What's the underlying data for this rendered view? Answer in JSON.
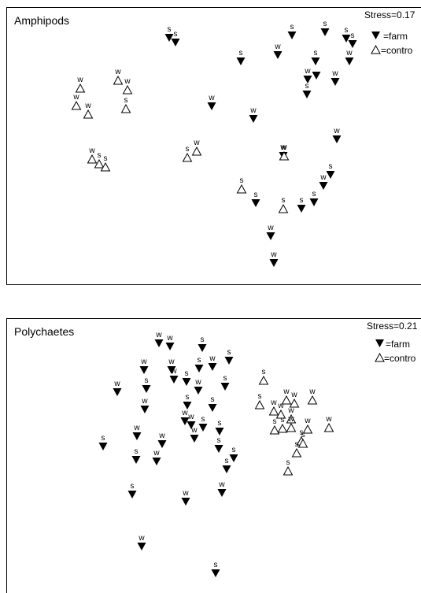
{
  "chart_data": [
    {
      "type": "scatter",
      "title": "Amphipods",
      "annotation": "Stress=0.17",
      "legend": {
        "position": "top-right",
        "farm_label": "=farm",
        "control_label": "=contro"
      },
      "series": [
        {
          "name": "farm",
          "marker": "filled-down-triangle",
          "points": [
            {
              "x": 215,
              "y": 48,
              "label": "s"
            },
            {
              "x": 223,
              "y": 54,
              "label": "s"
            },
            {
              "x": 306,
              "y": 78,
              "label": "s"
            },
            {
              "x": 371,
              "y": 45,
              "label": "s"
            },
            {
              "x": 413,
              "y": 41,
              "label": "s"
            },
            {
              "x": 440,
              "y": 49,
              "label": "s"
            },
            {
              "x": 448,
              "y": 56,
              "label": "s"
            },
            {
              "x": 353,
              "y": 70,
              "label": "w"
            },
            {
              "x": 401,
              "y": 78,
              "label": "s"
            },
            {
              "x": 444,
              "y": 78,
              "label": "w"
            },
            {
              "x": 391,
              "y": 101,
              "label": "w"
            },
            {
              "x": 402,
              "y": 96,
              "label": ""
            },
            {
              "x": 426,
              "y": 104,
              "label": "w"
            },
            {
              "x": 390,
              "y": 120,
              "label": "s"
            },
            {
              "x": 269,
              "y": 135,
              "label": "w"
            },
            {
              "x": 322,
              "y": 151,
              "label": "w"
            },
            {
              "x": 428,
              "y": 177,
              "label": "w"
            },
            {
              "x": 360,
              "y": 198,
              "label": "w"
            },
            {
              "x": 420,
              "y": 222,
              "label": "s"
            },
            {
              "x": 411,
              "y": 236,
              "label": "w"
            },
            {
              "x": 325,
              "y": 258,
              "label": "s"
            },
            {
              "x": 383,
              "y": 265,
              "label": "s"
            },
            {
              "x": 399,
              "y": 257,
              "label": "s"
            },
            {
              "x": 344,
              "y": 300,
              "label": "w"
            },
            {
              "x": 348,
              "y": 334,
              "label": "w"
            }
          ]
        },
        {
          "name": "control",
          "marker": "open-up-triangle",
          "points": [
            {
              "x": 102,
              "y": 112,
              "label": "w"
            },
            {
              "x": 97,
              "y": 134,
              "label": "w"
            },
            {
              "x": 112,
              "y": 145,
              "label": "w"
            },
            {
              "x": 150,
              "y": 102,
              "label": "w"
            },
            {
              "x": 162,
              "y": 114,
              "label": "w"
            },
            {
              "x": 160,
              "y": 138,
              "label": "s"
            },
            {
              "x": 117,
              "y": 202,
              "label": "w"
            },
            {
              "x": 126,
              "y": 208,
              "label": "s"
            },
            {
              "x": 134,
              "y": 212,
              "label": "s"
            },
            {
              "x": 238,
              "y": 200,
              "label": "s"
            },
            {
              "x": 250,
              "y": 192,
              "label": "w"
            },
            {
              "x": 361,
              "y": 198,
              "label": "w"
            },
            {
              "x": 307,
              "y": 240,
              "label": "s"
            },
            {
              "x": 360,
              "y": 265,
              "label": "s"
            }
          ]
        }
      ]
    },
    {
      "type": "scatter",
      "title": "Polychaetes",
      "annotation": "Stress=0.21",
      "legend": {
        "position": "top-right",
        "farm_label": "=farm",
        "control_label": "=contro"
      },
      "series": [
        {
          "name": "farm",
          "marker": "filled-down-triangle",
          "points": [
            {
              "x": 202,
              "y": 436,
              "label": "w"
            },
            {
              "x": 216,
              "y": 440,
              "label": "w"
            },
            {
              "x": 257,
              "y": 442,
              "label": "s"
            },
            {
              "x": 291,
              "y": 458,
              "label": "s"
            },
            {
              "x": 183,
              "y": 470,
              "label": "w"
            },
            {
              "x": 218,
              "y": 470,
              "label": "w"
            },
            {
              "x": 253,
              "y": 468,
              "label": "s"
            },
            {
              "x": 270,
              "y": 466,
              "label": "w"
            },
            {
              "x": 186,
              "y": 494,
              "label": "s"
            },
            {
              "x": 221,
              "y": 482,
              "label": "w"
            },
            {
              "x": 237,
              "y": 485,
              "label": "s"
            },
            {
              "x": 252,
              "y": 496,
              "label": "w"
            },
            {
              "x": 286,
              "y": 491,
              "label": "s"
            },
            {
              "x": 149,
              "y": 498,
              "label": "w"
            },
            {
              "x": 184,
              "y": 520,
              "label": "w"
            },
            {
              "x": 238,
              "y": 515,
              "label": "s"
            },
            {
              "x": 270,
              "y": 518,
              "label": "s"
            },
            {
              "x": 235,
              "y": 535,
              "label": "w"
            },
            {
              "x": 243,
              "y": 540,
              "label": "w"
            },
            {
              "x": 258,
              "y": 543,
              "label": "s"
            },
            {
              "x": 279,
              "y": 548,
              "label": "s"
            },
            {
              "x": 174,
              "y": 554,
              "label": "w"
            },
            {
              "x": 247,
              "y": 557,
              "label": "w"
            },
            {
              "x": 131,
              "y": 567,
              "label": "s"
            },
            {
              "x": 206,
              "y": 564,
              "label": "w"
            },
            {
              "x": 278,
              "y": 570,
              "label": "s"
            },
            {
              "x": 173,
              "y": 584,
              "label": "s"
            },
            {
              "x": 199,
              "y": 586,
              "label": "w"
            },
            {
              "x": 297,
              "y": 582,
              "label": "s"
            },
            {
              "x": 288,
              "y": 596,
              "label": "s"
            },
            {
              "x": 168,
              "y": 628,
              "label": "s"
            },
            {
              "x": 236,
              "y": 637,
              "label": "w"
            },
            {
              "x": 282,
              "y": 626,
              "label": "w"
            },
            {
              "x": 180,
              "y": 694,
              "label": "w"
            },
            {
              "x": 274,
              "y": 728,
              "label": "s"
            }
          ]
        },
        {
          "name": "control",
          "marker": "open-up-triangle",
          "points": [
            {
              "x": 335,
              "y": 483,
              "label": "s"
            },
            {
              "x": 330,
              "y": 514,
              "label": "s"
            },
            {
              "x": 348,
              "y": 522,
              "label": "w"
            },
            {
              "x": 357,
              "y": 526,
              "label": "w"
            },
            {
              "x": 364,
              "y": 508,
              "label": "w"
            },
            {
              "x": 374,
              "y": 512,
              "label": "w"
            },
            {
              "x": 397,
              "y": 508,
              "label": "w"
            },
            {
              "x": 370,
              "y": 532,
              "label": "w"
            },
            {
              "x": 349,
              "y": 546,
              "label": "s"
            },
            {
              "x": 359,
              "y": 544,
              "label": "s"
            },
            {
              "x": 370,
              "y": 543,
              "label": "w"
            },
            {
              "x": 391,
              "y": 545,
              "label": "w"
            },
            {
              "x": 418,
              "y": 543,
              "label": "w"
            },
            {
              "x": 383,
              "y": 560,
              "label": "s"
            },
            {
              "x": 385,
              "y": 563,
              "label": "s"
            },
            {
              "x": 377,
              "y": 575,
              "label": "s"
            },
            {
              "x": 366,
              "y": 598,
              "label": "s"
            }
          ]
        }
      ]
    }
  ]
}
